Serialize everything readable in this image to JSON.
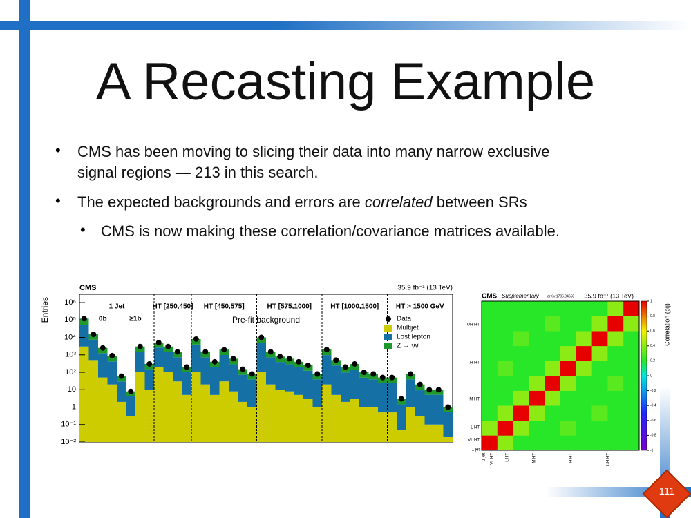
{
  "slide": {
    "title": "A Recasting Example",
    "bullets": [
      {
        "lines": [
          "CMS has been moving to slicing their data into many narrow exclusive",
          "signal regions — 213 in this search."
        ]
      },
      {
        "parts": [
          "The expected backgrounds and errors are ",
          "correlated",
          " between SRs"
        ]
      },
      {
        "lines": [
          "CMS is now making these correlation/covariance matrices available."
        ]
      }
    ],
    "page_number": "111"
  },
  "chart_data": [
    {
      "type": "stacked_bar_log",
      "experiment": "CMS",
      "lumi": "35.9 fb⁻¹ (13 TeV)",
      "ylabel": "Entries",
      "annotation": "Pre-fit background",
      "log_y": true,
      "regions": [
        "1 Jet",
        "HT [250,450]",
        "HT [450,575]",
        "HT [575,1000]",
        "HT [1000,1500]",
        "HT > 1500 GeV"
      ],
      "sublabels": [
        "0b",
        "≥1b"
      ],
      "ylim": [
        0.01,
        3000000
      ],
      "yticks": [
        {
          "value": 0.01,
          "label": "10⁻²"
        },
        {
          "value": 0.1,
          "label": "10⁻¹"
        },
        1,
        10,
        {
          "value": 100,
          "label": "10²"
        },
        {
          "value": 1000,
          "label": "10³"
        },
        {
          "value": 10000,
          "label": "10⁴"
        },
        {
          "value": 100000,
          "label": "10⁵"
        },
        {
          "value": 1000000,
          "label": "10⁶"
        }
      ],
      "data": {
        "name": "Data",
        "color": "#000000",
        "values": [
          120000,
          15000,
          2500,
          900,
          60,
          8,
          3000,
          300,
          5000,
          3000,
          1500,
          200,
          8000,
          1500,
          400,
          2000,
          600,
          150,
          80,
          10000,
          1500,
          800,
          600,
          400,
          250,
          80,
          2000,
          500,
          200,
          300,
          100,
          80,
          50,
          50,
          3,
          80,
          20,
          10,
          10,
          1
        ]
      },
      "series": [
        {
          "name": "Multijet",
          "color": "#cccc00",
          "values": [
            3000,
            500,
            50,
            20,
            2,
            0.3,
            100,
            10,
            200,
            100,
            30,
            5,
            100,
            20,
            5,
            30,
            8,
            2,
            1,
            100,
            20,
            10,
            8,
            5,
            3,
            1,
            20,
            5,
            2,
            3,
            1,
            1,
            0.5,
            0.5,
            0.05,
            1,
            0.3,
            0.1,
            0.1,
            0.02
          ]
        },
        {
          "name": "Lost lepton",
          "color": "#1570a6",
          "values": [
            50000,
            7000,
            1200,
            400,
            28,
            4,
            1400,
            140,
            2400,
            1400,
            700,
            95,
            3800,
            700,
            190,
            950,
            280,
            70,
            38,
            4800,
            700,
            380,
            280,
            190,
            120,
            38,
            950,
            240,
            95,
            140,
            48,
            38,
            24,
            24,
            1.4,
            38,
            9,
            5,
            5,
            0.5
          ]
        },
        {
          "name": "Z → νν̄",
          "color": "#1e9a2c",
          "values": [
            67000,
            7500,
            1250,
            480,
            30,
            3.7,
            1500,
            150,
            2400,
            1500,
            770,
            100,
            4100,
            780,
            205,
            1020,
            312,
            78,
            41,
            5100,
            780,
            410,
            312,
            205,
            127,
            41,
            1030,
            255,
            103,
            157,
            51,
            41,
            25.5,
            25.5,
            1.55,
            41,
            10.7,
            4.9,
            4.9,
            0.48
          ]
        }
      ]
    },
    {
      "type": "heatmap",
      "experiment": "CMS",
      "label": "Supplementary",
      "arxiv": "arXiv:1705.04650",
      "lumi": "35.9 fb⁻¹ (13 TeV)",
      "colorbar_label": "Correlation (ρij)",
      "clim": [
        -1,
        1
      ],
      "cticks": [
        1,
        0.8,
        0.6,
        0.4,
        0.2,
        0,
        -0.2,
        -0.4,
        -0.6,
        -0.8,
        -1
      ],
      "axis_labels": [
        "1 jet",
        "VL HT",
        "L HT",
        "M HT",
        "H HT",
        "UH HT"
      ],
      "matrix": [
        [
          1,
          0.4,
          0.2,
          0.2,
          0.2,
          0.2,
          0.2,
          0.2,
          0.2,
          0.2
        ],
        [
          0.4,
          1,
          0.4,
          0.2,
          0.2,
          0.3,
          0.2,
          0.2,
          0.2,
          0.2
        ],
        [
          0.2,
          0.4,
          1,
          0.4,
          0.2,
          0.2,
          0.2,
          0.3,
          0.2,
          0.2
        ],
        [
          0.2,
          0.2,
          0.4,
          1,
          0.4,
          0.2,
          0.2,
          0.2,
          0.2,
          0.2
        ],
        [
          0.2,
          0.2,
          0.2,
          0.4,
          1,
          0.4,
          0.2,
          0.2,
          0.3,
          0.2
        ],
        [
          0.2,
          0.3,
          0.2,
          0.2,
          0.4,
          1,
          0.4,
          0.2,
          0.2,
          0.2
        ],
        [
          0.2,
          0.2,
          0.2,
          0.2,
          0.2,
          0.4,
          1,
          0.4,
          0.2,
          0.2
        ],
        [
          0.2,
          0.2,
          0.3,
          0.2,
          0.2,
          0.2,
          0.4,
          1,
          0.4,
          0.2
        ],
        [
          0.2,
          0.2,
          0.2,
          0.2,
          0.3,
          0.2,
          0.2,
          0.4,
          1,
          0.4
        ],
        [
          0.2,
          0.2,
          0.2,
          0.2,
          0.2,
          0.2,
          0.2,
          0.2,
          0.4,
          1
        ]
      ]
    }
  ]
}
